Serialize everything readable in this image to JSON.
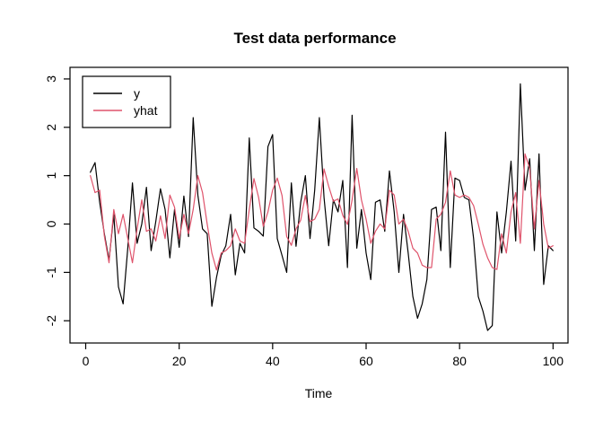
{
  "title": "Test data performance",
  "axes": {
    "x": {
      "label": "Time",
      "tick_labels": [
        "0",
        "20",
        "40",
        "60",
        "80",
        "100"
      ]
    },
    "y": {
      "tick_labels": [
        "-2",
        "-1",
        "0",
        "1",
        "2",
        "3"
      ]
    }
  },
  "legend": {
    "items": [
      {
        "label": "y",
        "color": "#000000"
      },
      {
        "label": "yhat",
        "color": "#DF536B"
      }
    ]
  },
  "chart_data": {
    "type": "line",
    "title": "Test data performance",
    "xlabel": "Time",
    "ylabel": "",
    "grid": false,
    "legend_position": "top-left",
    "xlim": [
      -3.36,
      103.2
    ],
    "ylim": [
      -2.46,
      3.24
    ],
    "x_ticks": [
      0,
      20,
      40,
      60,
      80,
      100
    ],
    "y_ticks": [
      -2,
      -1,
      0,
      1,
      2,
      3
    ],
    "x_start": 1,
    "x_step": 1,
    "series": [
      {
        "name": "y",
        "color": "#000000",
        "values": [
          1.07,
          1.27,
          0.45,
          -0.2,
          -0.75,
          0.2,
          -1.3,
          -1.65,
          -0.5,
          0.85,
          -0.4,
          0.0,
          0.76,
          -0.55,
          0.05,
          0.73,
          0.3,
          -0.7,
          0.3,
          -0.48,
          0.58,
          -0.26,
          2.2,
          0.6,
          -0.1,
          -0.2,
          -1.7,
          -1.1,
          -0.65,
          -0.45,
          0.2,
          -1.05,
          -0.4,
          -0.6,
          1.78,
          -0.08,
          -0.15,
          -0.25,
          1.6,
          1.85,
          -0.3,
          -0.65,
          -1.0,
          0.85,
          -0.46,
          0.45,
          1.0,
          -0.3,
          0.7,
          2.2,
          0.55,
          -0.45,
          0.5,
          0.25,
          0.9,
          -0.9,
          2.25,
          -0.5,
          0.3,
          -0.6,
          -1.15,
          0.45,
          0.5,
          -0.15,
          1.1,
          0.25,
          -1.0,
          0.2,
          -0.6,
          -1.5,
          -1.95,
          -1.65,
          -1.15,
          0.3,
          0.35,
          -0.55,
          1.9,
          -0.9,
          0.95,
          0.9,
          0.55,
          0.5,
          -0.3,
          -1.5,
          -1.8,
          -2.2,
          -2.1,
          0.25,
          -0.6,
          0.25,
          1.3,
          -0.35,
          2.9,
          0.7,
          1.35,
          -0.55,
          1.45,
          -1.25,
          -0.45,
          -0.55
        ]
      },
      {
        "name": "yhat",
        "color": "#DF536B",
        "values": [
          1.0,
          0.65,
          0.7,
          -0.25,
          -0.8,
          0.3,
          -0.2,
          0.2,
          -0.3,
          -0.8,
          -0.1,
          0.5,
          -0.15,
          -0.1,
          -0.35,
          0.17,
          -0.3,
          0.6,
          0.35,
          -0.3,
          0.2,
          -0.2,
          0.3,
          1.0,
          0.65,
          0.0,
          -0.6,
          -0.95,
          -0.6,
          -0.55,
          -0.45,
          -0.1,
          -0.35,
          -0.4,
          0.3,
          0.94,
          0.55,
          -0.05,
          0.25,
          0.7,
          0.95,
          0.59,
          -0.26,
          -0.44,
          -0.1,
          0.08,
          0.59,
          0.05,
          0.1,
          0.3,
          1.14,
          0.78,
          0.47,
          0.52,
          0.18,
          -0.01,
          0.5,
          1.15,
          0.5,
          0.1,
          -0.4,
          -0.15,
          0.0,
          -0.1,
          0.7,
          0.6,
          0.0,
          0.1,
          -0.15,
          -0.5,
          -0.6,
          -0.85,
          -0.9,
          -0.9,
          0.1,
          0.2,
          0.45,
          1.1,
          0.6,
          0.55,
          0.6,
          0.55,
          0.38,
          0.0,
          -0.42,
          -0.7,
          -0.9,
          -0.94,
          -0.2,
          -0.6,
          0.25,
          0.65,
          -0.4,
          1.45,
          1.15,
          -0.1,
          0.9,
          0.0,
          -0.5,
          -0.45
        ]
      }
    ]
  }
}
